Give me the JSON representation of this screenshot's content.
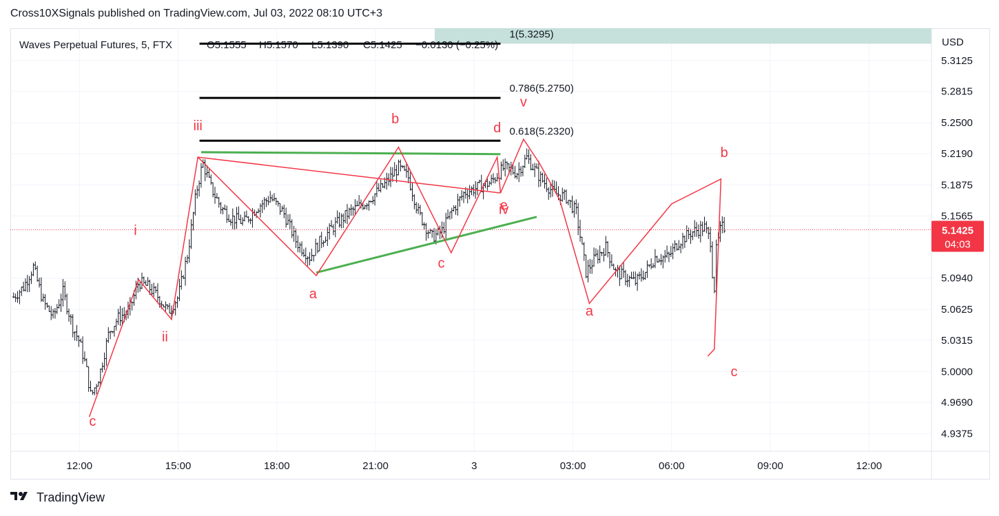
{
  "header": {
    "publish_line": "Cross10XSignals published on TradingView.com, Jul 03, 2022 08:10 UTC+3"
  },
  "legend": {
    "symbol": "Waves Perpetual Futures, 5, FTX",
    "open": "O5.1555",
    "high": "H5.1570",
    "low": "L5.1390",
    "close": "C5.1425",
    "change": "−0.0130 (−0.25%)"
  },
  "price_axis": {
    "currency": "USD",
    "current_price": "5.1425",
    "countdown": "04:03",
    "badge_color": "#f23645"
  },
  "footer": {
    "brand": "TradingView"
  },
  "colors": {
    "wave": "#f23645",
    "trendline": "#4caf50",
    "fib": "#000000",
    "bar": "#131722",
    "fib_zone": "#bcdad5"
  },
  "chart_data": {
    "type": "ohlc",
    "interval": "5",
    "ylim": [
      4.92,
      5.345
    ],
    "y_ticks": [
      "5.3125",
      "5.2815",
      "5.2500",
      "5.2190",
      "5.1875",
      "5.1565",
      "5.0940",
      "5.0625",
      "5.0315",
      "5.0000",
      "4.9690",
      "4.9375"
    ],
    "x_ticks": [
      {
        "label": "12:00",
        "t": 2
      },
      {
        "label": "15:00",
        "t": 5
      },
      {
        "label": "18:00",
        "t": 8
      },
      {
        "label": "21:00",
        "t": 11
      },
      {
        "label": "3",
        "t": 14
      },
      {
        "label": "03:00",
        "t": 17
      },
      {
        "label": "06:00",
        "t": 20
      },
      {
        "label": "09:00",
        "t": 23
      },
      {
        "label": "12:00",
        "t": 26
      }
    ],
    "xlim": [
      -0.1,
      27.9
    ],
    "fib_levels": [
      {
        "label": "1(5.3295)",
        "value": 5.3295,
        "t_start": 5.65,
        "t_end": 14.8
      },
      {
        "label": "0.786(5.2750)",
        "value": 5.275,
        "t_start": 5.65,
        "t_end": 14.8
      },
      {
        "label": "0.618(5.2320)",
        "value": 5.232,
        "t_start": 5.65,
        "t_end": 14.8
      }
    ],
    "fib_zone": {
      "t_start": 12.8,
      "t_end": 27.9,
      "y_low": 5.3295,
      "y_high": 5.345
    },
    "current_price": 5.1425,
    "wave_path": [
      [
        2.3,
        4.9545
      ],
      [
        3.8,
        5.0925
      ],
      [
        4.8,
        5.0525
      ],
      [
        5.6,
        5.2155
      ],
      [
        9.2,
        5.0965
      ],
      [
        11.7,
        5.2255
      ],
      [
        13.3,
        5.1195
      ],
      [
        14.7,
        5.2155
      ],
      [
        14.8,
        5.1795
      ],
      [
        15.5,
        5.2335
      ],
      [
        16.0,
        5.2085
      ],
      [
        16.6,
        5.1725
      ],
      [
        17.5,
        5.0685
      ],
      [
        20.0,
        5.1685
      ],
      [
        21.5,
        5.1935
      ],
      [
        21.3,
        5.0225
      ],
      [
        21.1,
        5.0155
      ]
    ],
    "wave_side_path": [
      [
        5.6,
        5.2155
      ],
      [
        14.8,
        5.1795
      ]
    ],
    "trendlines": [
      [
        [
          5.7,
          5.2205
        ],
        [
          14.8,
          5.2185
        ]
      ],
      [
        [
          9.2,
          5.0995
        ],
        [
          15.9,
          5.1555
        ]
      ]
    ],
    "labels": [
      {
        "text": "iii",
        "t": 5.6,
        "y": 5.2425
      },
      {
        "text": "i",
        "t": 3.7,
        "y": 5.1375
      },
      {
        "text": "ii",
        "t": 4.6,
        "y": 5.0305
      },
      {
        "text": "c",
        "t": 2.4,
        "y": 4.9455
      },
      {
        "text": "a",
        "t": 9.1,
        "y": 5.0735
      },
      {
        "text": "b",
        "t": 11.6,
        "y": 5.2495
      },
      {
        "text": "c",
        "t": 13.0,
        "y": 5.1045
      },
      {
        "text": "d",
        "t": 14.7,
        "y": 5.2405
      },
      {
        "text": "e",
        "t": 14.9,
        "y": 5.1625
      },
      {
        "text": "iv",
        "t": 14.9,
        "y": 5.1585
      },
      {
        "text": "v",
        "t": 15.5,
        "y": 5.2665
      },
      {
        "text": "a",
        "t": 17.5,
        "y": 5.0565
      },
      {
        "text": "b",
        "t": 21.6,
        "y": 5.2155
      },
      {
        "text": "c",
        "t": 21.9,
        "y": 4.9955
      }
    ],
    "price_anchors": [
      [
        0,
        5.075
      ],
      [
        0.3,
        5.085
      ],
      [
        0.6,
        5.105
      ],
      [
        0.9,
        5.07
      ],
      [
        1.2,
        5.055
      ],
      [
        1.5,
        5.08
      ],
      [
        1.8,
        5.045
      ],
      [
        2.0,
        5.03
      ],
      [
        2.2,
        5.005
      ],
      [
        2.35,
        4.975
      ],
      [
        2.6,
        4.995
      ],
      [
        2.9,
        5.04
      ],
      [
        3.2,
        5.055
      ],
      [
        3.5,
        5.06
      ],
      [
        3.8,
        5.09
      ],
      [
        4.1,
        5.085
      ],
      [
        4.4,
        5.075
      ],
      [
        4.7,
        5.06
      ],
      [
        5.0,
        5.075
      ],
      [
        5.3,
        5.12
      ],
      [
        5.55,
        5.18
      ],
      [
        5.75,
        5.21
      ],
      [
        6.0,
        5.185
      ],
      [
        6.3,
        5.165
      ],
      [
        6.6,
        5.155
      ],
      [
        7.0,
        5.15
      ],
      [
        7.4,
        5.165
      ],
      [
        7.8,
        5.175
      ],
      [
        8.2,
        5.16
      ],
      [
        8.6,
        5.13
      ],
      [
        9.0,
        5.115
      ],
      [
        9.3,
        5.13
      ],
      [
        9.7,
        5.145
      ],
      [
        10.2,
        5.16
      ],
      [
        10.7,
        5.17
      ],
      [
        11.2,
        5.185
      ],
      [
        11.7,
        5.205
      ],
      [
        12.0,
        5.195
      ],
      [
        12.3,
        5.16
      ],
      [
        12.7,
        5.135
      ],
      [
        13.0,
        5.14
      ],
      [
        13.3,
        5.16
      ],
      [
        13.7,
        5.18
      ],
      [
        14.1,
        5.185
      ],
      [
        14.5,
        5.19
      ],
      [
        14.9,
        5.205
      ],
      [
        15.3,
        5.2
      ],
      [
        15.6,
        5.215
      ],
      [
        16.0,
        5.195
      ],
      [
        16.4,
        5.18
      ],
      [
        16.8,
        5.175
      ],
      [
        17.1,
        5.16
      ],
      [
        17.4,
        5.1
      ],
      [
        17.7,
        5.115
      ],
      [
        18.0,
        5.125
      ],
      [
        18.3,
        5.1
      ],
      [
        18.6,
        5.095
      ],
      [
        18.9,
        5.09
      ],
      [
        19.2,
        5.1
      ],
      [
        19.5,
        5.115
      ],
      [
        19.9,
        5.115
      ],
      [
        20.2,
        5.13
      ],
      [
        20.6,
        5.14
      ],
      [
        21.0,
        5.145
      ],
      [
        21.2,
        5.13
      ],
      [
        21.28,
        5.07
      ],
      [
        21.35,
        5.12
      ],
      [
        21.5,
        5.145
      ],
      [
        21.6,
        5.145
      ]
    ]
  }
}
